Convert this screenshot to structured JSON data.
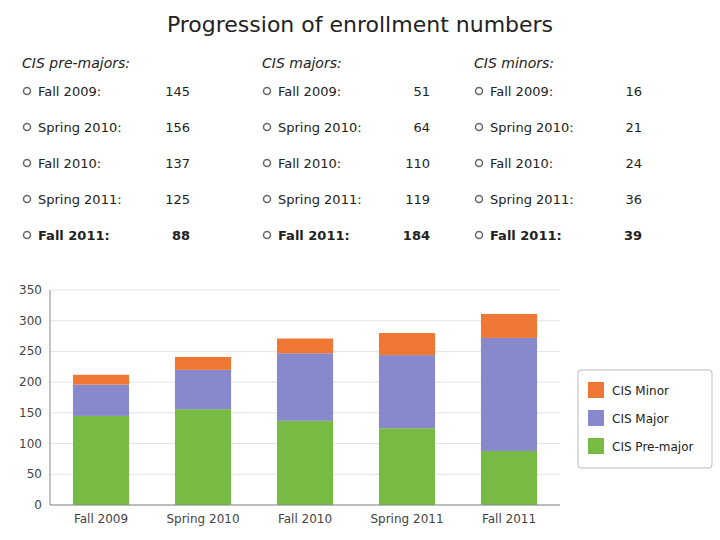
{
  "chart_data": {
    "type": "bar",
    "stacked": true,
    "title": "Progression of enrollment numbers",
    "categories": [
      "Fall 2009",
      "Spring 2010",
      "Fall 2010",
      "Spring 2011",
      "Fall 2011"
    ],
    "series": [
      {
        "name": "CIS Pre-major",
        "color": "#77bb44",
        "values": [
          145,
          156,
          137,
          125,
          88
        ]
      },
      {
        "name": "CIS Major",
        "color": "#8888cc",
        "values": [
          51,
          64,
          110,
          119,
          184
        ]
      },
      {
        "name": "CIS Minor",
        "color": "#ee7733",
        "values": [
          16,
          21,
          24,
          36,
          39
        ]
      }
    ],
    "ylim": [
      0,
      350
    ],
    "yticks": [
      0,
      50,
      100,
      150,
      200,
      250,
      300,
      350
    ],
    "grid": true,
    "legend": "right",
    "annotations": [
      {
        "header": "CIS pre-majors:",
        "rows": [
          {
            "label": "Fall 2009:",
            "value": "145"
          },
          {
            "label": "Spring 2010:",
            "value": "156"
          },
          {
            "label": "Fall 2010:",
            "value": "137"
          },
          {
            "label": "Spring 2011:",
            "value": "125"
          },
          {
            "label": "Fall 2011:",
            "value": "88"
          }
        ]
      },
      {
        "header": "CIS majors:",
        "rows": [
          {
            "label": "Fall 2009:",
            "value": "51"
          },
          {
            "label": "Spring 2010:",
            "value": "64"
          },
          {
            "label": "Fall 2010:",
            "value": "110"
          },
          {
            "label": "Spring 2011:",
            "value": "119"
          },
          {
            "label": "Fall 2011:",
            "value": "184"
          }
        ]
      },
      {
        "header": "CIS minors:",
        "rows": [
          {
            "label": "Fall 2009:",
            "value": "16"
          },
          {
            "label": "Spring 2010:",
            "value": "21"
          },
          {
            "label": "Fall 2010:",
            "value": "24"
          },
          {
            "label": "Spring 2011:",
            "value": "36"
          },
          {
            "label": "Fall 2011:",
            "value": "39"
          }
        ]
      }
    ]
  }
}
